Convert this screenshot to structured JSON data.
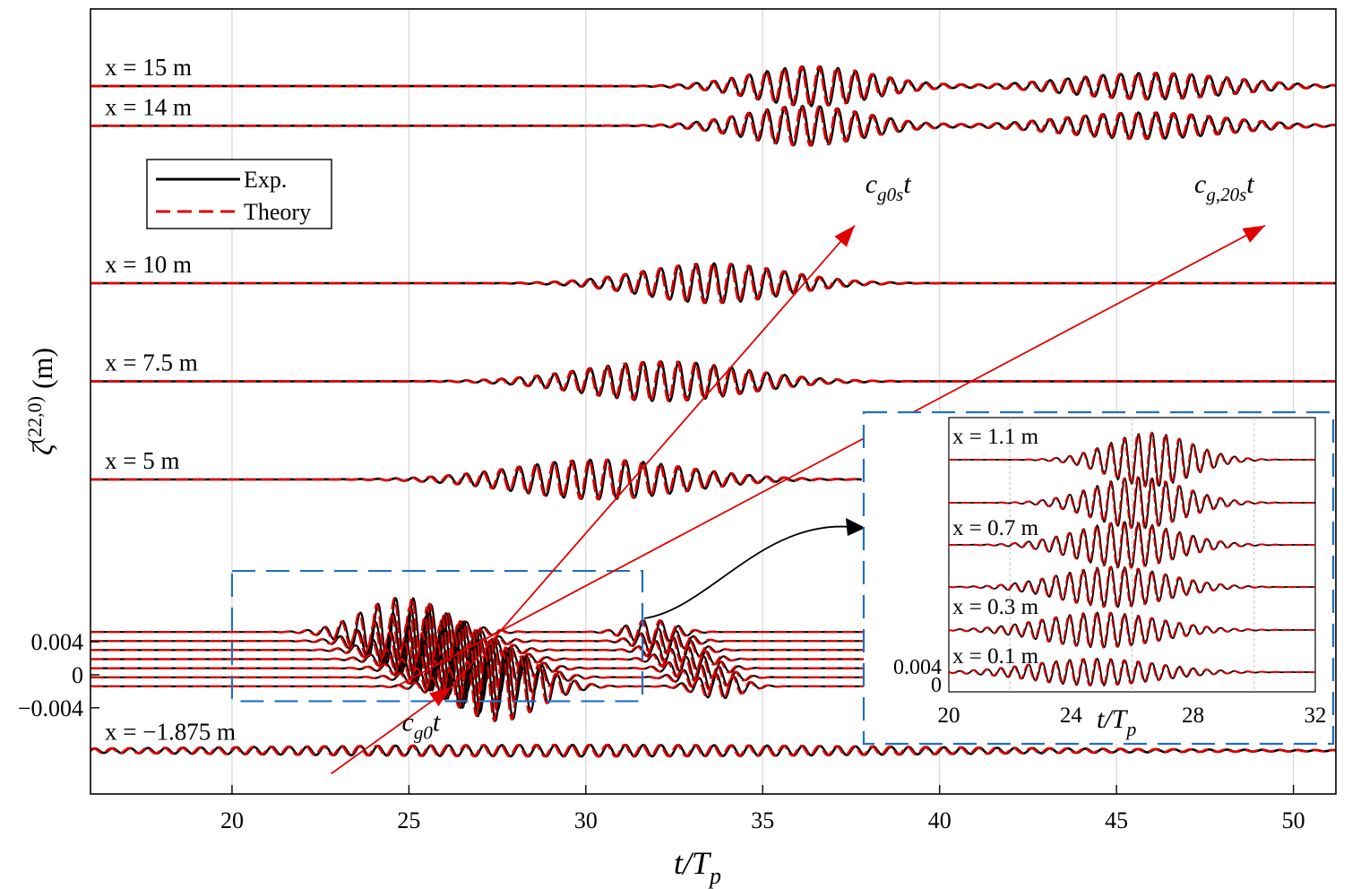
{
  "chart_data": {
    "type": "line",
    "xlabel": {
      "main": "t/T",
      "sub": "p"
    },
    "ylabel": {
      "main": "ζ",
      "sup": "(22,0)",
      "unit": " (m)"
    },
    "xlim": [
      16,
      51.2
    ],
    "xticks": [
      "20",
      "25",
      "30",
      "35",
      "40",
      "45",
      "50"
    ],
    "yticks": [
      "0.004",
      "0",
      "−0.004"
    ],
    "grid": "vertical",
    "legend": {
      "placement": "upper-left",
      "entries": [
        "Exp.",
        "Theory"
      ]
    },
    "colors": {
      "exp": "#000000",
      "theory": "#e00000",
      "arrows": "#e00000",
      "box": "#1f6fc4"
    },
    "series": [
      {
        "label": "x = 15 m",
        "center": 36.4,
        "width": 2.4,
        "amp": 0.0024,
        "second_center": 46.0,
        "second_width": 3.2,
        "second_amp": 0.0016
      },
      {
        "label": "x = 14 m",
        "center": 36.2,
        "width": 2.4,
        "amp": 0.0024,
        "second_center": 45.8,
        "second_width": 3.2,
        "second_amp": 0.0016
      },
      {
        "label": "x = 10 m",
        "center": 33.6,
        "width": 2.8,
        "amp": 0.0024
      },
      {
        "label": "x = 7.5 m",
        "center": 32.2,
        "width": 3.2,
        "amp": 0.0024
      },
      {
        "label": "x = 5 m",
        "center": 30.4,
        "width": 3.4,
        "amp": 0.0024
      },
      {
        "label": "x = −1.875 m",
        "center": 30.0,
        "width": 14.0,
        "amp": 0.0007
      }
    ],
    "bundle": {
      "count": 7,
      "center": 26.2,
      "width": 1.6,
      "amp": 0.0042,
      "tail_center": 32.8,
      "tail_width": 0.9,
      "tail_amp": 0.0015
    },
    "arrows": [
      {
        "label": {
          "main": "c",
          "sub": "g0",
          "tail": "t"
        },
        "from": [
          22.8,
          -0.012
        ],
        "to": [
          26.2,
          -0.0015
        ]
      },
      {
        "label": {
          "main": "c",
          "sub": "g0s",
          "tail": "t"
        },
        "from": [
          26.2,
          -0.0015
        ],
        "to": [
          37.6,
          0.0545
        ]
      },
      {
        "label": {
          "main": "c",
          "sub": "g,20s",
          "tail": "t"
        },
        "from": [
          24.6,
          -0.0015
        ],
        "to": [
          49.2,
          0.0545
        ]
      }
    ],
    "inset": {
      "xlim": [
        20,
        32
      ],
      "xticks": [
        "20",
        "24",
        "28",
        "32"
      ],
      "yticks": [
        "0.004",
        "0"
      ],
      "xlabel": {
        "main": "t/T",
        "sub": "p"
      },
      "labels": [
        "x = 1.1 m",
        "x = 0.7 m",
        "x = 0.3 m",
        "x = 0.1 m"
      ],
      "traces": [
        {
          "center": 26.6,
          "width": 1.9,
          "amp": 1.0
        },
        {
          "center": 26.2,
          "width": 2.1,
          "amp": 0.95
        },
        {
          "center": 25.8,
          "width": 2.3,
          "amp": 0.85
        },
        {
          "center": 25.4,
          "width": 2.5,
          "amp": 0.75
        },
        {
          "center": 25.0,
          "width": 2.7,
          "amp": 0.65
        },
        {
          "center": 24.8,
          "width": 2.9,
          "amp": 0.5
        }
      ]
    }
  }
}
